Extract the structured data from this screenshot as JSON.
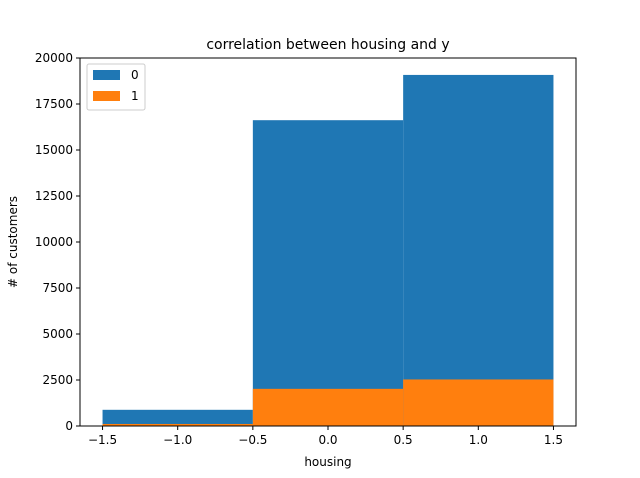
{
  "chart_data": {
    "type": "bar",
    "title": "correlation between housing and y",
    "xlabel": "housing",
    "ylabel": "# of customers",
    "xlim": [
      -1.65,
      1.65
    ],
    "ylim": [
      0,
      20000
    ],
    "xticks": [
      -1.5,
      -1.0,
      -0.5,
      0.0,
      0.5,
      1.0,
      1.5
    ],
    "xtick_labels": [
      "−1.5",
      "−1.0",
      "−0.5",
      "0.0",
      "0.5",
      "1.0",
      "1.5"
    ],
    "yticks": [
      0,
      2500,
      5000,
      7500,
      10000,
      12500,
      15000,
      17500,
      20000
    ],
    "ytick_labels": [
      "0",
      "2500",
      "5000",
      "7500",
      "10000",
      "12500",
      "15000",
      "17500",
      "20000"
    ],
    "bins": [
      [
        -1.5,
        -0.5
      ],
      [
        -0.5,
        0.5
      ],
      [
        0.5,
        1.5
      ]
    ],
    "grid": false,
    "legend": "upper-left",
    "series": [
      {
        "name": "0",
        "color": "#1f77b4",
        "values": [
          880,
          16620,
          19080
        ]
      },
      {
        "name": "1",
        "color": "#ff7f0e",
        "values": [
          110,
          2020,
          2530
        ]
      }
    ]
  }
}
